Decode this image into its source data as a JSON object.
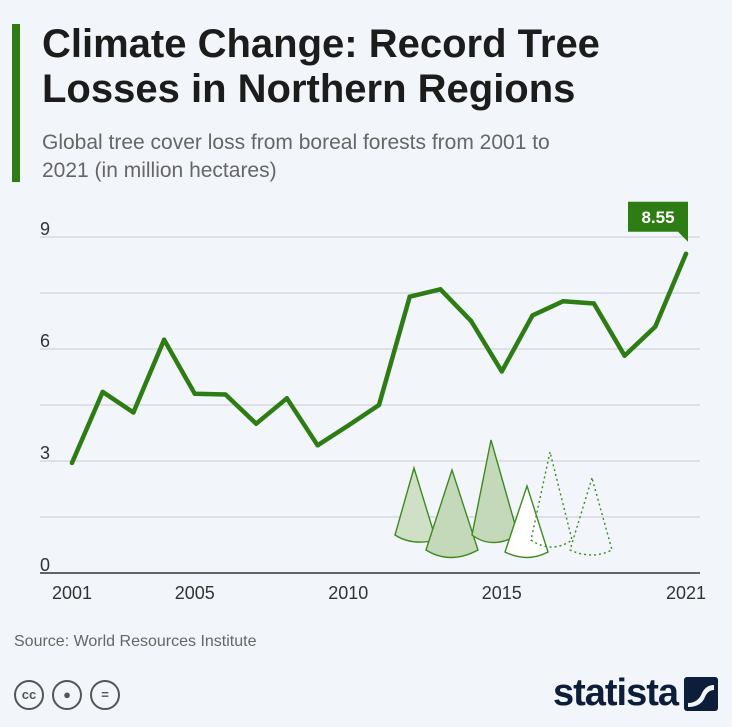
{
  "header": {
    "title": "Climate Change: Record Tree Losses in Northern Regions",
    "subtitle": "Global tree cover loss from boreal forests from 2001 to 2021 (in million hectares)"
  },
  "footer": {
    "source": "Source: World Resources Institute",
    "brand": "statista",
    "license_icons": [
      "cc-icon",
      "by-icon",
      "nd-icon"
    ]
  },
  "colors": {
    "accent": "#2e7d14",
    "line": "#2e7d14",
    "grid": "#c8ccd2",
    "background": "#f2f5f9"
  },
  "chart_data": {
    "type": "line",
    "title": "Climate Change: Record Tree Losses in Northern Regions",
    "subtitle": "Global tree cover loss from boreal forests from 2001 to 2021 (in million hectares)",
    "xlabel": "",
    "ylabel": "",
    "x": [
      2001,
      2002,
      2003,
      2004,
      2005,
      2006,
      2007,
      2008,
      2009,
      2010,
      2011,
      2012,
      2013,
      2014,
      2015,
      2016,
      2017,
      2018,
      2019,
      2020,
      2021
    ],
    "xticks": [
      "2001",
      "2005",
      "2010",
      "2015",
      "2021"
    ],
    "yticks": [
      "0",
      "3",
      "6",
      "9"
    ],
    "ylim": [
      0,
      9
    ],
    "grid": true,
    "series": [
      {
        "values": [
          2.95,
          4.85,
          4.3,
          6.25,
          4.8,
          4.78,
          4.0,
          4.68,
          3.42,
          3.95,
          4.5,
          7.4,
          7.6,
          6.75,
          5.4,
          6.9,
          7.28,
          7.22,
          5.82,
          6.6,
          8.55
        ]
      }
    ],
    "annotations": [
      {
        "label": "8.55",
        "x": 2021,
        "y": 8.55
      }
    ]
  }
}
